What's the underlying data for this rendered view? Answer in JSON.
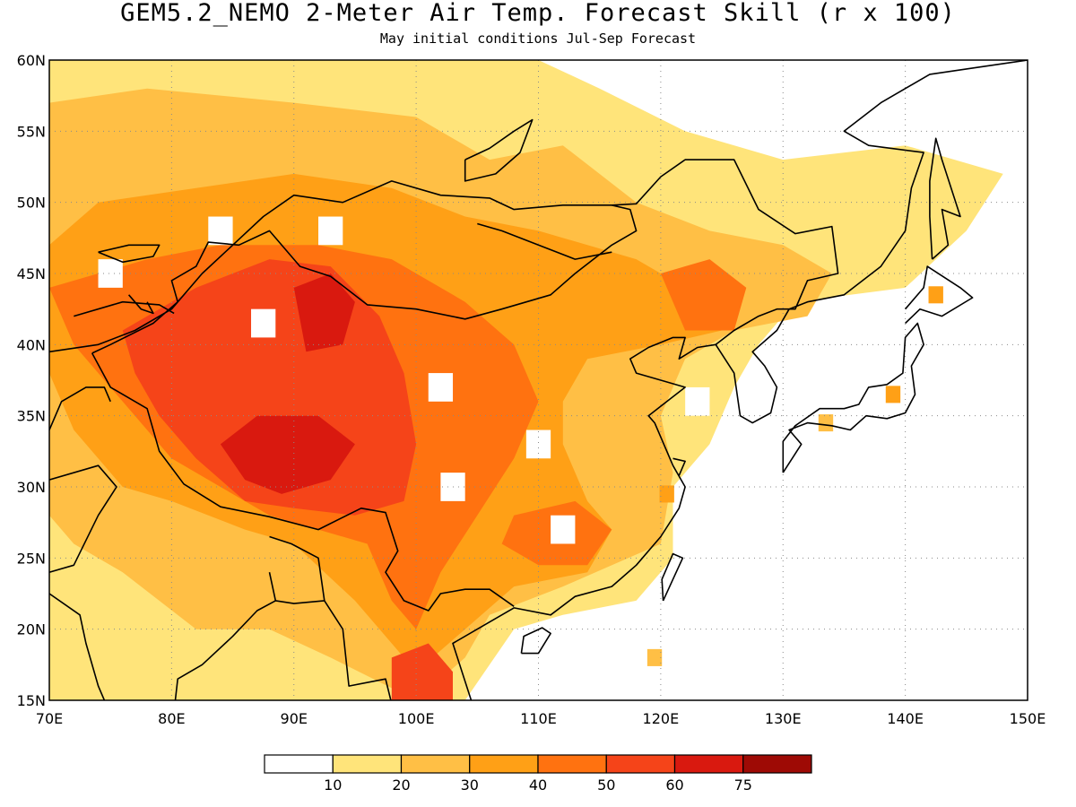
{
  "title": "GEM5.2_NEMO 2-Meter Air Temp. Forecast Skill (r x 100)",
  "subtitle": "May initial conditions  Jul-Sep Forecast",
  "map": {
    "lon_range": [
      70,
      150
    ],
    "lat_range": [
      15,
      60
    ],
    "lon_ticks": [
      "70E",
      "80E",
      "90E",
      "100E",
      "110E",
      "120E",
      "130E",
      "140E",
      "150E"
    ],
    "lat_ticks": [
      "15N",
      "20N",
      "25N",
      "30N",
      "35N",
      "40N",
      "45N",
      "50N",
      "55N",
      "60N"
    ],
    "grid": "dotted"
  },
  "colorbar": {
    "labels": [
      "10",
      "20",
      "30",
      "40",
      "50",
      "60",
      "75"
    ],
    "colors": [
      "#ffffff",
      "#ffe47a",
      "#ffbf45",
      "#ffa016",
      "#ff7210",
      "#f54419",
      "#d9190f",
      "#9e0a05"
    ]
  },
  "colors": {
    "background": "#ffffff",
    "coastline": "#000000"
  }
}
